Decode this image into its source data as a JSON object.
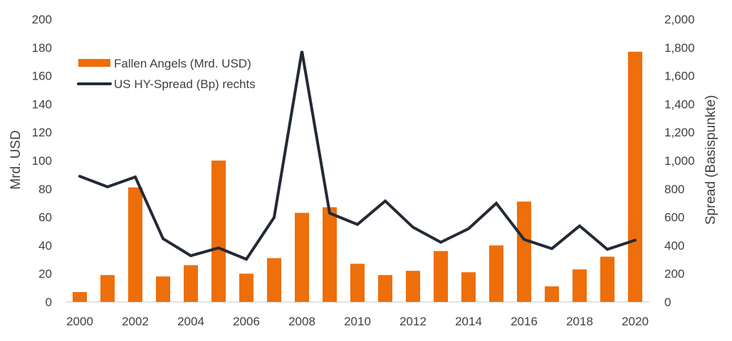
{
  "chart_data": {
    "type": "bar",
    "categories": [
      "2000",
      "2001",
      "2002",
      "2003",
      "2004",
      "2005",
      "2006",
      "2007",
      "2008",
      "2009",
      "2010",
      "2011",
      "2012",
      "2013",
      "2014",
      "2015",
      "2016",
      "2017",
      "2018",
      "2019",
      "2020"
    ],
    "x_tick_labels": [
      "2000",
      "2002",
      "2004",
      "2006",
      "2008",
      "2010",
      "2012",
      "2014",
      "2016",
      "2018",
      "2020"
    ],
    "series": [
      {
        "name": "Fallen Angels (Mrd. USD)",
        "type": "bar",
        "axis": "left",
        "color": "#EE6E0A",
        "values": [
          7,
          19,
          81,
          18,
          26,
          100,
          20,
          31,
          63,
          67,
          27,
          19,
          22,
          36,
          21,
          40,
          71,
          11,
          23,
          32,
          177
        ]
      },
      {
        "name": "US HY-Spread (Bp) rechts",
        "type": "line",
        "axis": "right",
        "color": "#232A36",
        "values": [
          889,
          814,
          884,
          447,
          327,
          382,
          302,
          598,
          1774,
          628,
          548,
          714,
          528,
          422,
          518,
          698,
          442,
          377,
          538,
          372,
          437
        ]
      }
    ],
    "ylabel": "Mrd. USD",
    "ylabel_right": "Spread (Basispunkte)",
    "ylim": [
      0,
      200
    ],
    "ylim_right": [
      0,
      2000
    ],
    "y_ticks": [
      "0",
      "20",
      "40",
      "60",
      "80",
      "100",
      "120",
      "140",
      "160",
      "180",
      "200"
    ],
    "y_ticks_right": [
      "0",
      "200",
      "400",
      "600",
      "800",
      "1,000",
      "1,200",
      "1,400",
      "1,600",
      "1,800",
      "2,000"
    ],
    "grid": false,
    "legend_position": "top-left"
  }
}
